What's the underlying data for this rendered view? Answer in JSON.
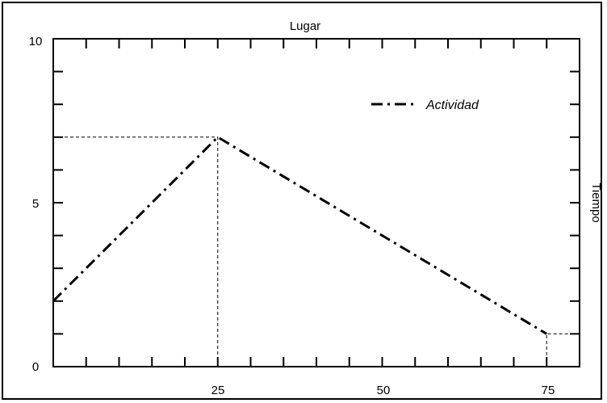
{
  "chart_data": {
    "type": "line",
    "title": "Lugar",
    "xlabel": "",
    "ylabel": "Tiempo",
    "xlim": [
      0,
      80
    ],
    "ylim": [
      0,
      10
    ],
    "x_ticks_labeled": [
      "25",
      "50",
      "75"
    ],
    "y_ticks_labeled": [
      "0",
      "5",
      "10"
    ],
    "x_minor_step": 5,
    "y_minor_step": 1,
    "grid": false,
    "legend_position": "top-right",
    "series": [
      {
        "name": "Actividad",
        "style": "dash-dot",
        "color": "#000000",
        "x": [
          0,
          25,
          75
        ],
        "y": [
          2,
          7,
          1
        ]
      }
    ],
    "reference_lines": [
      {
        "x": [
          0,
          25,
          25
        ],
        "y": [
          7,
          7,
          0
        ]
      },
      {
        "x": [
          75,
          75,
          80
        ],
        "y": [
          0,
          1,
          1
        ]
      }
    ]
  }
}
